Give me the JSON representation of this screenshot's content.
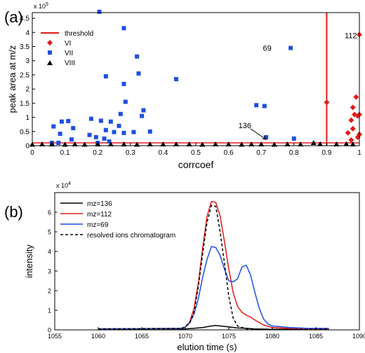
{
  "chart_data": [
    {
      "type": "scatter",
      "panel_label": "(a)",
      "title": "",
      "xlabel": "corrcoef",
      "ylabel": "peak area at m/z",
      "y_exponent": "x 10",
      "y_exponent_power": "5",
      "xlim": [
        0,
        1
      ],
      "ylim": [
        0,
        4.7
      ],
      "xticks": [
        "0",
        "0.1",
        "0.2",
        "0.3",
        "0.4",
        "0.5",
        "0.6",
        "0.7",
        "0.8",
        "0.9",
        "1"
      ],
      "yticks": [
        "0",
        "0.5",
        "1",
        "1.5",
        "2",
        "2.5",
        "3",
        "3.5",
        "4",
        "4.5"
      ],
      "grid": false,
      "legend_position": "top-left",
      "legend": [
        "threshold",
        "VI",
        "VII",
        "VIII"
      ],
      "threshold": {
        "name": "threshold",
        "color": "#e41a1c",
        "x": 0.9,
        "y": 0.1
      },
      "series": [
        {
          "name": "VI",
          "marker": "diamond",
          "color": "#e41a1c",
          "points": [
            [
              0.9,
              1.53
            ],
            [
              0.965,
              0.45
            ],
            [
              0.975,
              0.2
            ],
            [
              0.975,
              0.9
            ],
            [
              0.98,
              0.6
            ],
            [
              0.98,
              1.35
            ],
            [
              0.985,
              1.1
            ],
            [
              0.99,
              1.72
            ],
            [
              0.995,
              0.3
            ],
            [
              0.995,
              1.05
            ],
            [
              1.0,
              0.4
            ],
            [
              1.0,
              1.1
            ],
            [
              1.0,
              3.92
            ]
          ]
        },
        {
          "name": "VII",
          "marker": "square",
          "color": "#1f4fe0",
          "points": [
            [
              0.06,
              0.1
            ],
            [
              0.065,
              0.68
            ],
            [
              0.08,
              0.1
            ],
            [
              0.085,
              0.42
            ],
            [
              0.09,
              0.85
            ],
            [
              0.11,
              0.87
            ],
            [
              0.12,
              0.22
            ],
            [
              0.125,
              0.62
            ],
            [
              0.175,
              0.38
            ],
            [
              0.18,
              0.95
            ],
            [
              0.195,
              0.3
            ],
            [
              0.2,
              0.1
            ],
            [
              0.205,
              4.73
            ],
            [
              0.21,
              0.88
            ],
            [
              0.22,
              0.25
            ],
            [
              0.225,
              2.45
            ],
            [
              0.225,
              0.55
            ],
            [
              0.235,
              0.15
            ],
            [
              0.24,
              0.85
            ],
            [
              0.25,
              0.48
            ],
            [
              0.265,
              0.7
            ],
            [
              0.27,
              1.12
            ],
            [
              0.28,
              2.18
            ],
            [
              0.28,
              0.45
            ],
            [
              0.28,
              4.15
            ],
            [
              0.285,
              1.55
            ],
            [
              0.31,
              0.48
            ],
            [
              0.32,
              3.15
            ],
            [
              0.325,
              2.55
            ],
            [
              0.335,
              1.05
            ],
            [
              0.34,
              1.25
            ],
            [
              0.36,
              0.5
            ],
            [
              0.44,
              2.35
            ],
            [
              0.685,
              1.43
            ],
            [
              0.71,
              1.4
            ],
            [
              0.715,
              0.3
            ],
            [
              0.79,
              3.45
            ],
            [
              0.8,
              0.25
            ]
          ]
        },
        {
          "name": "VIII",
          "marker": "triangle",
          "color": "#000000",
          "points": [
            [
              0.0,
              0.04
            ],
            [
              0.03,
              0.05
            ],
            [
              0.06,
              0.05
            ],
            [
              0.1,
              0.04
            ],
            [
              0.13,
              0.05
            ],
            [
              0.16,
              0.04
            ],
            [
              0.2,
              0.05
            ],
            [
              0.24,
              0.05
            ],
            [
              0.28,
              0.05
            ],
            [
              0.32,
              0.04
            ],
            [
              0.36,
              0.05
            ],
            [
              0.4,
              0.05
            ],
            [
              0.44,
              0.05
            ],
            [
              0.48,
              0.05
            ],
            [
              0.52,
              0.04
            ],
            [
              0.56,
              0.05
            ],
            [
              0.6,
              0.05
            ],
            [
              0.64,
              0.04
            ],
            [
              0.67,
              0.05
            ],
            [
              0.7,
              0.05
            ],
            [
              0.74,
              0.04
            ],
            [
              0.78,
              0.05
            ],
            [
              0.82,
              0.05
            ],
            [
              0.86,
              0.1
            ],
            [
              0.88,
              0.06
            ],
            [
              0.93,
              0.05
            ],
            [
              0.96,
              0.06
            ],
            [
              0.98,
              0.05
            ]
          ]
        }
      ],
      "annotations": [
        {
          "text": "112",
          "x": 0.955,
          "y": 3.9,
          "color": "#e41a1c"
        },
        {
          "text": "69",
          "x": 0.705,
          "y": 3.45,
          "color": "#1f4fe0"
        },
        {
          "text": "136",
          "x": 0.63,
          "y": 0.72,
          "color": "#000000"
        }
      ],
      "arrow": {
        "from": [
          0.667,
          0.6
        ],
        "to": [
          0.715,
          0.22
        ]
      }
    },
    {
      "type": "line",
      "panel_label": "(b)",
      "title": "",
      "xlabel": "elution time (s)",
      "ylabel": "intensity",
      "y_exponent": "x 10",
      "y_exponent_power": "4",
      "xlim": [
        1055,
        1090
      ],
      "ylim": [
        0,
        7
      ],
      "xticks": [
        "1055",
        "1060",
        "1065",
        "1070",
        "1075",
        "1080",
        "1085",
        "1090"
      ],
      "yticks": [
        "0",
        "1",
        "2",
        "3",
        "4",
        "5",
        "6"
      ],
      "grid": false,
      "legend_position": "top-left",
      "series": [
        {
          "name": "mz=136",
          "color": "#000000",
          "dash": "",
          "x": [
            1060,
            1070,
            1071,
            1072,
            1073,
            1073.5,
            1074,
            1075,
            1076,
            1077,
            1078,
            1080,
            1086.5
          ],
          "y": [
            0.05,
            0.05,
            0.08,
            0.12,
            0.2,
            0.22,
            0.2,
            0.15,
            0.1,
            0.08,
            0.05,
            0.03,
            0.05
          ]
        },
        {
          "name": "mz=112",
          "color": "#e41a1c",
          "dash": "",
          "x": [
            1060,
            1069.5,
            1070,
            1070.5,
            1071,
            1071.5,
            1072,
            1072.5,
            1073,
            1073.5,
            1074,
            1074.5,
            1075,
            1075.5,
            1076,
            1076.5,
            1077,
            1077.5,
            1078,
            1079,
            1080,
            1082,
            1084,
            1086.5
          ],
          "y": [
            0.05,
            0.08,
            0.15,
            0.4,
            1.1,
            2.4,
            4.2,
            5.8,
            6.55,
            6.5,
            5.8,
            4.5,
            3.1,
            1.9,
            1.2,
            0.9,
            0.75,
            0.65,
            0.5,
            0.25,
            0.12,
            0.07,
            0.05,
            0.05
          ]
        },
        {
          "name": "mz=69",
          "color": "#1f4fe0",
          "dash": "",
          "x": [
            1060,
            1069.5,
            1070,
            1070.5,
            1071,
            1071.5,
            1072,
            1072.5,
            1073,
            1073.5,
            1074,
            1074.5,
            1075,
            1075.5,
            1076,
            1076.5,
            1077,
            1077.5,
            1078,
            1078.5,
            1079,
            1079.5,
            1080,
            1082,
            1084,
            1086.5
          ],
          "y": [
            0.05,
            0.08,
            0.15,
            0.35,
            0.8,
            1.6,
            2.7,
            3.6,
            4.25,
            4.2,
            3.8,
            3.1,
            2.5,
            2.45,
            2.6,
            3.2,
            3.3,
            2.8,
            1.9,
            1.1,
            0.55,
            0.3,
            0.2,
            0.12,
            0.08,
            0.08
          ]
        },
        {
          "name": "resolved ions chromatogram",
          "color": "#000000",
          "dash": "4,3",
          "x": [
            1060,
            1069.5,
            1070,
            1070.5,
            1071,
            1071.5,
            1072,
            1072.5,
            1073,
            1073.5,
            1074,
            1074.5,
            1075,
            1075.5,
            1076,
            1077,
            1078,
            1086.5
          ],
          "y": [
            0.05,
            0.08,
            0.15,
            0.35,
            0.9,
            2.2,
            3.9,
            5.5,
            6.35,
            6.3,
            5.0,
            3.4,
            1.7,
            0.6,
            0.2,
            0.05,
            0.03,
            0.03
          ]
        }
      ]
    }
  ]
}
